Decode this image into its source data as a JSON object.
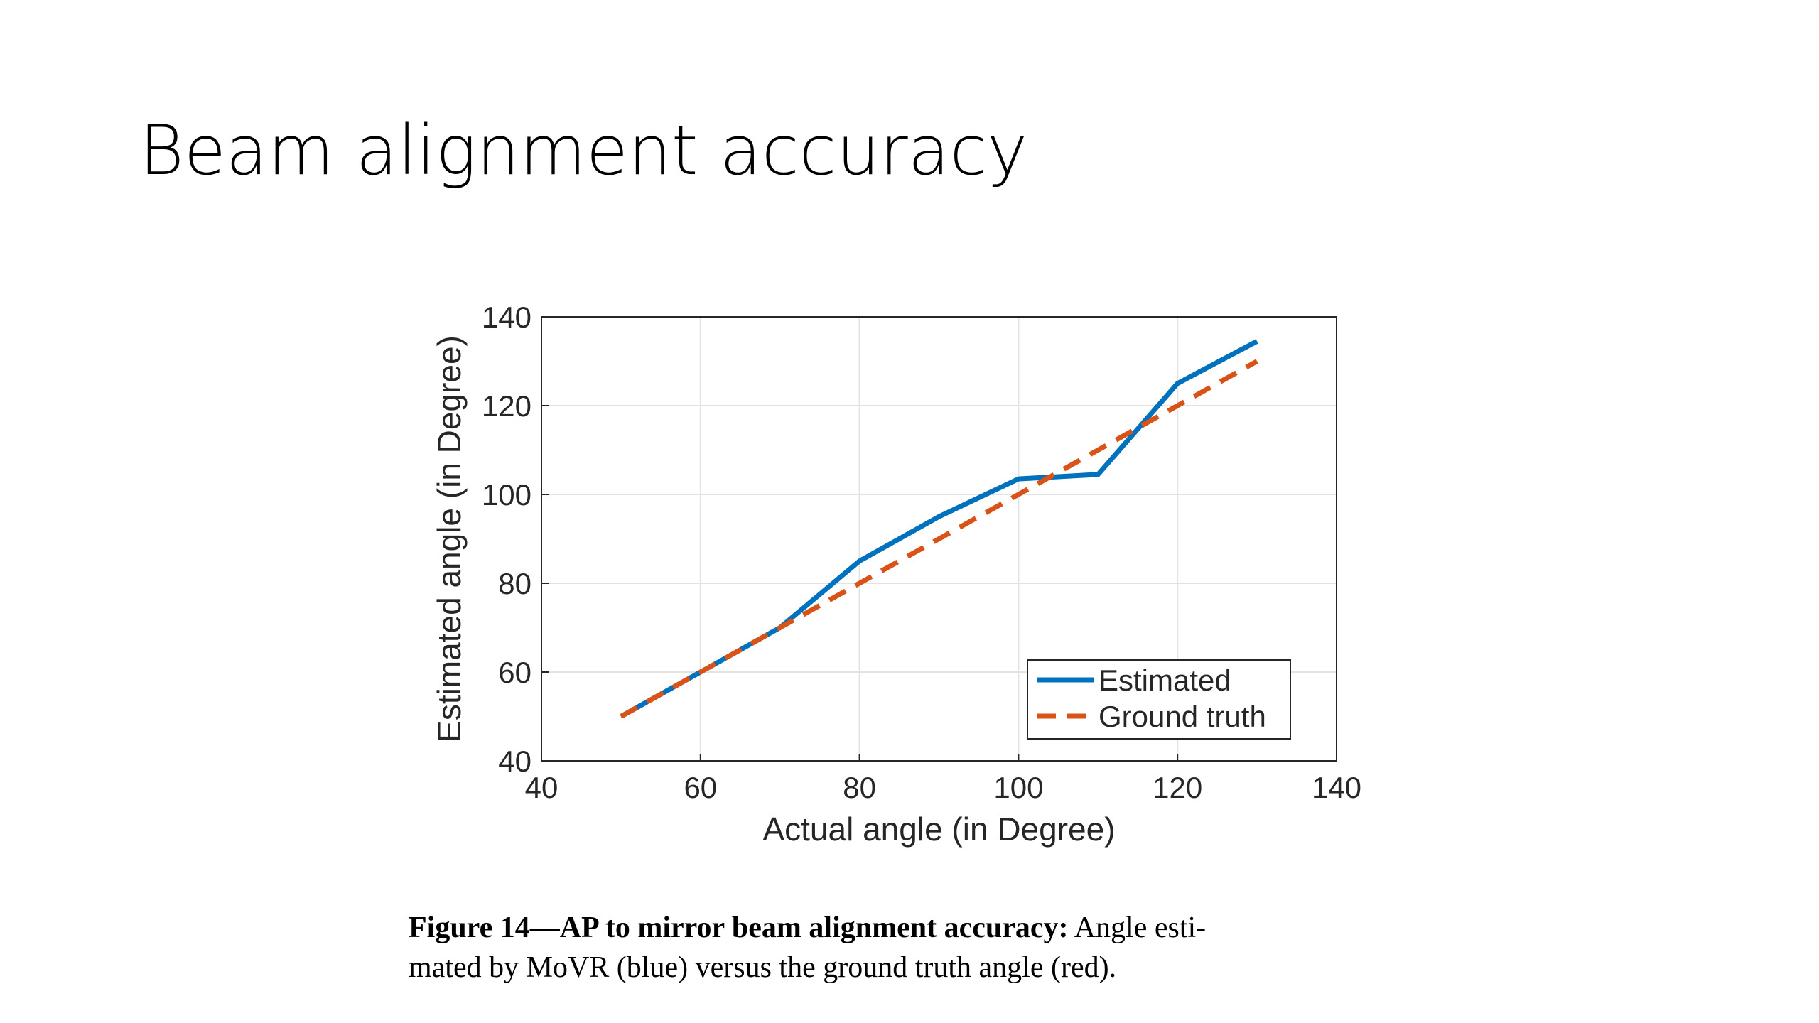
{
  "slide": {
    "title": "Beam alignment accuracy"
  },
  "caption": {
    "bold": "Figure 14—AP to mirror beam alignment accuracy:",
    "line1": "Angle esti-",
    "line2": "mated by MoVR (blue) versus the ground truth angle (red)."
  },
  "chart_data": {
    "type": "line",
    "x_label": "Actual angle (in Degree)",
    "y_label": "Estimated angle (in Degree)",
    "x": [
      50,
      60,
      70,
      80,
      90,
      100,
      110,
      120,
      130
    ],
    "series": [
      {
        "name": "Estimated",
        "color": "#0072bd",
        "style": "solid",
        "values": [
          50,
          60,
          70,
          85,
          95,
          103.5,
          104.5,
          125,
          134.5
        ]
      },
      {
        "name": "Ground truth",
        "color": "#d95319",
        "style": "dashed",
        "values": [
          50,
          60,
          70,
          80,
          90,
          100,
          110,
          120,
          130
        ]
      }
    ],
    "xlim": [
      40,
      140
    ],
    "xticks": [
      40,
      60,
      80,
      100,
      120,
      140
    ],
    "ylim": [
      40,
      140
    ],
    "yticks": [
      40,
      60,
      80,
      100,
      120,
      140
    ],
    "grid": true,
    "legend": "lower right"
  }
}
